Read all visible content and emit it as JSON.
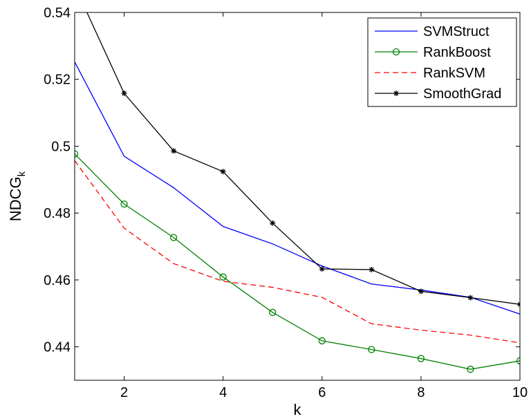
{
  "chart_data": {
    "type": "line",
    "title": "",
    "xlabel": "k",
    "ylabel": "NDCG",
    "ylabel_sub": "k",
    "xlim": [
      1,
      10
    ],
    "ylim": [
      0.43,
      0.54
    ],
    "xticks": [
      2,
      4,
      6,
      8,
      10
    ],
    "yticks": [
      0.44,
      0.46,
      0.48,
      0.5,
      0.52,
      0.54
    ],
    "ytick_labels": [
      "0.44",
      "0.46",
      "0.48",
      "0.5",
      "0.52",
      "0.54"
    ],
    "grid": false,
    "legend_position": "top-right",
    "x": [
      1,
      2,
      3,
      4,
      5,
      6,
      7,
      8,
      9,
      10
    ],
    "series": [
      {
        "name": "SVMStruct",
        "color": "#0000ff",
        "dash": "solid",
        "marker": "none",
        "values": [
          0.5252,
          0.497,
          0.4876,
          0.476,
          0.4708,
          0.4642,
          0.4588,
          0.457,
          0.4548,
          0.4498
        ]
      },
      {
        "name": "RankBoost",
        "color": "#008000",
        "dash": "solid",
        "marker": "circle",
        "values": [
          0.4977,
          0.4827,
          0.4727,
          0.4609,
          0.4503,
          0.4418,
          0.4392,
          0.4365,
          0.4333,
          0.4358
        ]
      },
      {
        "name": "RankSVM",
        "color": "#ff0000",
        "dash": "dashed",
        "marker": "none",
        "values": [
          0.4957,
          0.4755,
          0.4649,
          0.4596,
          0.4578,
          0.4548,
          0.4469,
          0.445,
          0.4435,
          0.4412
        ]
      },
      {
        "name": "SmoothGrad",
        "color": "#000000",
        "dash": "solid",
        "marker": "star",
        "values": [
          0.548,
          0.5158,
          0.4986,
          0.4924,
          0.477,
          0.4633,
          0.4631,
          0.4566,
          0.4547,
          0.4527
        ]
      }
    ]
  }
}
